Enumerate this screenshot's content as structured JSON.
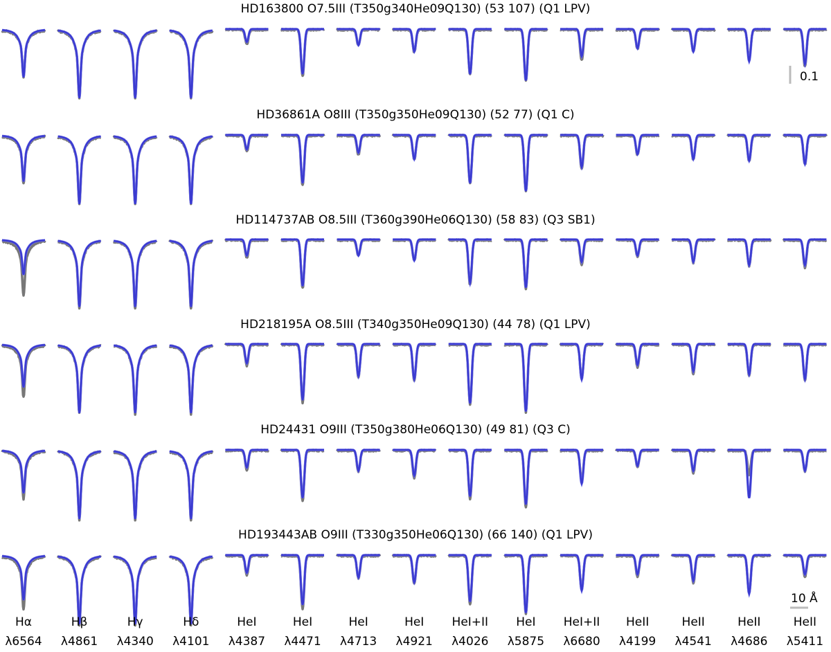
{
  "chart_data": {
    "type": "line",
    "description_units": "normalized flux vs wavelength",
    "rows": [
      {
        "title": "HD163800 O7.5III (T350g340He09Q130) (53 107) (Q1 LPV)",
        "depths": [
          0.3,
          0.43,
          0.43,
          0.43,
          0.09,
          0.29,
          0.1,
          0.14,
          0.28,
          0.32,
          0.19,
          0.12,
          0.14,
          0.18,
          0.23
        ],
        "model_depths": [
          0.3,
          0.43,
          0.43,
          0.43,
          0.08,
          0.28,
          0.1,
          0.14,
          0.28,
          0.32,
          0.17,
          0.12,
          0.14,
          0.2,
          0.22
        ]
      },
      {
        "title": "HD36861A O8III (T350g350He09Q130) (52 77) (Q1 C)",
        "depths": [
          0.3,
          0.43,
          0.43,
          0.43,
          0.1,
          0.31,
          0.12,
          0.15,
          0.3,
          0.35,
          0.21,
          0.12,
          0.15,
          0.16,
          0.18
        ],
        "model_depths": [
          0.29,
          0.43,
          0.43,
          0.43,
          0.09,
          0.3,
          0.11,
          0.15,
          0.3,
          0.35,
          0.2,
          0.12,
          0.15,
          0.16,
          0.18
        ]
      },
      {
        "title": "HD114737AB O8.5III (T360g390He06Q130) (58 83) (Q3 SB1)",
        "depths": [
          0.35,
          0.43,
          0.43,
          0.43,
          0.11,
          0.3,
          0.1,
          0.13,
          0.28,
          0.3,
          0.15,
          0.1,
          0.14,
          0.16,
          0.17
        ],
        "model_depths": [
          0.22,
          0.42,
          0.42,
          0.42,
          0.1,
          0.29,
          0.1,
          0.13,
          0.27,
          0.3,
          0.14,
          0.1,
          0.14,
          0.16,
          0.16
        ]
      },
      {
        "title": "HD218195A O8.5III (T340g350He09Q130) (44 78) (Q1 LPV)",
        "depths": [
          0.33,
          0.43,
          0.43,
          0.43,
          0.13,
          0.36,
          0.2,
          0.22,
          0.37,
          0.42,
          0.21,
          0.14,
          0.18,
          0.19,
          0.22
        ],
        "model_depths": [
          0.27,
          0.43,
          0.43,
          0.43,
          0.12,
          0.35,
          0.2,
          0.22,
          0.37,
          0.42,
          0.22,
          0.13,
          0.17,
          0.19,
          0.22
        ]
      },
      {
        "title": "HD24431 O9III (T350g380He06Q130) (49 81) (Q3 C)",
        "depths": [
          0.3,
          0.43,
          0.43,
          0.43,
          0.12,
          0.31,
          0.13,
          0.17,
          0.3,
          0.35,
          0.19,
          0.1,
          0.14,
          0.15,
          0.13
        ],
        "model_depths": [
          0.27,
          0.43,
          0.43,
          0.43,
          0.11,
          0.3,
          0.13,
          0.16,
          0.29,
          0.34,
          0.21,
          0.1,
          0.13,
          0.3,
          0.13
        ]
      },
      {
        "title": "HD193443AB O9III (T330g350He06Q130) (66 140) (Q1 LPV)",
        "depths": [
          0.33,
          0.43,
          0.43,
          0.43,
          0.12,
          0.33,
          0.14,
          0.17,
          0.3,
          0.36,
          0.21,
          0.13,
          0.17,
          0.23,
          0.13
        ],
        "model_depths": [
          0.28,
          0.43,
          0.43,
          0.43,
          0.11,
          0.31,
          0.14,
          0.17,
          0.29,
          0.36,
          0.22,
          0.12,
          0.16,
          0.24,
          0.12
        ]
      }
    ],
    "columns": [
      {
        "label1": "Hα",
        "label2": "λ6564",
        "type": "balmer"
      },
      {
        "label1": "Hβ",
        "label2": "λ4861",
        "type": "balmer"
      },
      {
        "label1": "Hγ",
        "label2": "λ4340",
        "type": "balmer"
      },
      {
        "label1": "Hδ",
        "label2": "λ4101",
        "type": "balmer"
      },
      {
        "label1": "HeI",
        "label2": "λ4387",
        "type": "narrow"
      },
      {
        "label1": "HeI",
        "label2": "λ4471",
        "type": "narrow"
      },
      {
        "label1": "HeI",
        "label2": "λ4713",
        "type": "narrow"
      },
      {
        "label1": "HeI",
        "label2": "λ4921",
        "type": "narrow"
      },
      {
        "label1": "HeI+II",
        "label2": "λ4026",
        "type": "narrow"
      },
      {
        "label1": "HeI",
        "label2": "λ5875",
        "type": "narrow"
      },
      {
        "label1": "HeI+II",
        "label2": "λ6680",
        "type": "narrow"
      },
      {
        "label1": "HeII",
        "label2": "λ4199",
        "type": "narrow"
      },
      {
        "label1": "HeII",
        "label2": "λ4541",
        "type": "narrow"
      },
      {
        "label1": "HeII",
        "label2": "λ4686",
        "type": "narrow"
      },
      {
        "label1": "HeII",
        "label2": "λ5411",
        "type": "narrow"
      }
    ],
    "scale_flux_label": "0.1",
    "scale_wavelength_label": "10 Å",
    "colors": {
      "observed": "#777777",
      "model_dark": "#3b3bd0",
      "model_light": "#8080f0",
      "scalebar": "#bbbbbb"
    }
  }
}
